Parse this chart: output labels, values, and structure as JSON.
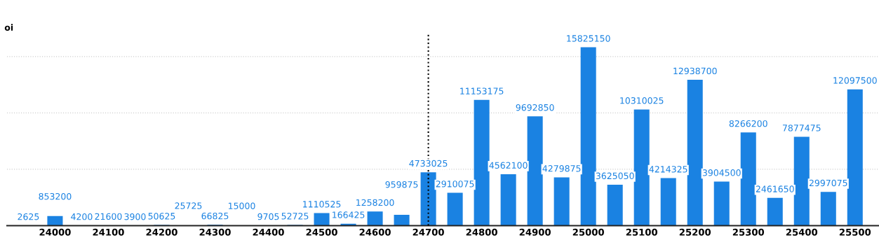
{
  "chart_data": {
    "type": "bar",
    "ylabel": "oi",
    "x": [
      23950,
      24000,
      24050,
      24100,
      24150,
      24200,
      24250,
      24300,
      24350,
      24400,
      24450,
      24500,
      24550,
      24600,
      24650,
      24700,
      24750,
      24800,
      24850,
      24900,
      24950,
      25000,
      25050,
      25100,
      25150,
      25200,
      25250,
      25300,
      25350,
      25400,
      25450,
      25500
    ],
    "values": [
      2625,
      853200,
      4200,
      21600,
      3900,
      50625,
      25725,
      66825,
      15000,
      9705,
      52725,
      1110525,
      166425,
      1258200,
      959875,
      4733025,
      2910075,
      11153175,
      4562100,
      9692850,
      4279875,
      15825150,
      3625050,
      10310025,
      4214325,
      12938700,
      3904500,
      8266200,
      2461650,
      7877475,
      2997075,
      12097500
    ],
    "color": "#1a82e2",
    "data_labels": true,
    "xlim": [
      23910,
      25545
    ],
    "xticks": [
      24000,
      24100,
      24200,
      24300,
      24400,
      24500,
      24600,
      24700,
      24800,
      24900,
      25000,
      25100,
      25200,
      25300,
      25400,
      25500
    ],
    "yticks": [
      {
        "value": 5000000,
        "label": null
      },
      {
        "value": 10000000,
        "label": null
      },
      {
        "value": 15000000,
        "label": null
      }
    ],
    "grid": "y",
    "tick_labels": "x",
    "ref_lines": [
      {
        "axis": "x",
        "value": 24700,
        "label": null,
        "color": "#000000",
        "line_style": "dotted"
      }
    ]
  }
}
